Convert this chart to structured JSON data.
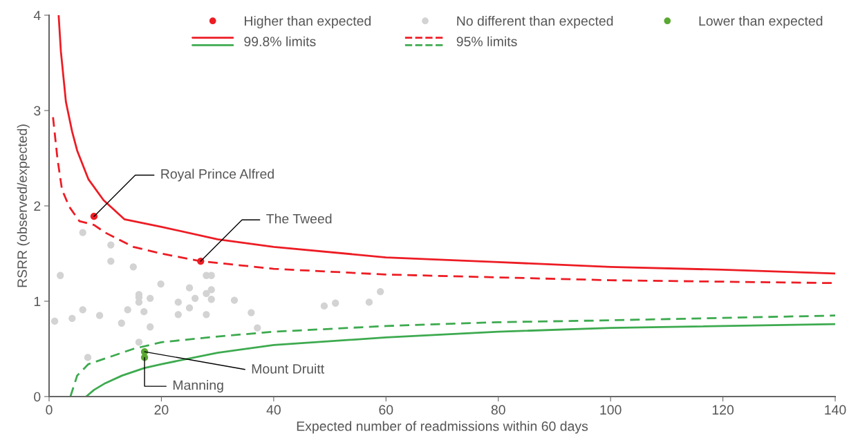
{
  "chart_data": {
    "type": "scatter",
    "xlabel": "Expected number of readmissions within 60 days",
    "ylabel": "RSRR (observed/expected)",
    "xlim": [
      0,
      140
    ],
    "ylim": [
      0,
      4
    ],
    "xticks": [
      0,
      20,
      40,
      60,
      80,
      100,
      120,
      140
    ],
    "yticks": [
      0,
      1,
      2,
      3,
      4
    ],
    "grid": false,
    "legend": "top right",
    "series": [
      {
        "name": "Higher than expected",
        "marker": "circle",
        "color": "#ed1c24",
        "x": [
          8.0,
          27.0
        ],
        "values": [
          1.89,
          1.42
        ]
      },
      {
        "name": "No different than expected",
        "marker": "circle",
        "color": "#d3d3d3",
        "x": [
          1.0,
          2.0,
          4.1,
          6.0,
          6.0,
          6.9,
          9.0,
          11.0,
          11.0,
          12.9,
          14.0,
          15.0,
          16.0,
          16.0,
          16.0,
          16.0,
          16.9,
          18.0,
          18.0,
          19.9,
          23.0,
          23.0,
          25.0,
          25.0,
          26.0,
          28.0,
          28.9,
          28.0,
          28.9,
          28.9,
          28.0,
          33.0,
          36.0,
          37.1,
          49.0,
          51.0,
          57.0,
          59.0
        ],
        "values": [
          0.79,
          1.27,
          0.82,
          0.91,
          1.72,
          0.41,
          0.85,
          1.59,
          1.42,
          0.77,
          0.91,
          1.36,
          1.07,
          1.04,
          0.99,
          0.57,
          0.89,
          1.03,
          0.73,
          1.18,
          0.99,
          0.86,
          1.14,
          0.93,
          1.03,
          1.27,
          1.27,
          1.08,
          1.12,
          1.02,
          0.86,
          1.01,
          0.88,
          0.72,
          0.95,
          0.98,
          0.99,
          1.1
        ]
      },
      {
        "name": "Lower than expected",
        "marker": "circle",
        "color": "#5aa832",
        "x": [
          17.0,
          17.0
        ],
        "values": [
          0.47,
          0.41
        ]
      },
      {
        "name": "99.8% limits",
        "type": "line",
        "marker": "none",
        "line_style": "solid",
        "color": "#ed1c24",
        "x": [
          1.7,
          2.1,
          3.0,
          4.1,
          5.0,
          7.0,
          9.7,
          13.4,
          20,
          30,
          40,
          60,
          80,
          100,
          120,
          140
        ],
        "values": [
          4.0,
          3.62,
          3.09,
          2.78,
          2.58,
          2.28,
          2.06,
          1.86,
          1.78,
          1.65,
          1.57,
          1.46,
          1.41,
          1.36,
          1.33,
          1.29
        ]
      },
      {
        "type": "line",
        "marker": "none",
        "line_style": "solid",
        "color": "#3daa4f",
        "x": [
          6.6,
          8,
          10,
          13,
          17,
          20,
          30,
          40,
          60,
          80,
          100,
          140
        ],
        "values": [
          0,
          0.07,
          0.14,
          0.22,
          0.3,
          0.34,
          0.46,
          0.54,
          0.62,
          0.68,
          0.72,
          0.76
        ]
      },
      {
        "name": "95% limits",
        "type": "line",
        "marker": "none",
        "line_style": "dashed",
        "color": "#ed1c24",
        "x": [
          0.7,
          1.5,
          2.3,
          3.6,
          5.4,
          8,
          10,
          15,
          20,
          27,
          40,
          60,
          80,
          100,
          140
        ],
        "values": [
          2.93,
          2.49,
          2.17,
          1.99,
          1.84,
          1.8,
          1.72,
          1.57,
          1.5,
          1.42,
          1.34,
          1.28,
          1.25,
          1.22,
          1.19
        ]
      },
      {
        "type": "line",
        "marker": "none",
        "line_style": "dashed",
        "color": "#3daa4f",
        "x": [
          3.8,
          5,
          7,
          10,
          15,
          20,
          30,
          40,
          60,
          80,
          100,
          140
        ],
        "values": [
          0,
          0.22,
          0.34,
          0.4,
          0.5,
          0.57,
          0.63,
          0.68,
          0.74,
          0.78,
          0.8,
          0.85
        ]
      }
    ],
    "annotations": [
      {
        "text": "Royal Prince Alfred",
        "x": 8.0,
        "y": 1.89
      },
      {
        "text": "The Tweed",
        "x": 27.0,
        "y": 1.42
      },
      {
        "text": "Mount Druitt",
        "x": 17.0,
        "y": 0.47
      },
      {
        "text": "Manning",
        "x": 17.0,
        "y": 0.41
      }
    ]
  }
}
